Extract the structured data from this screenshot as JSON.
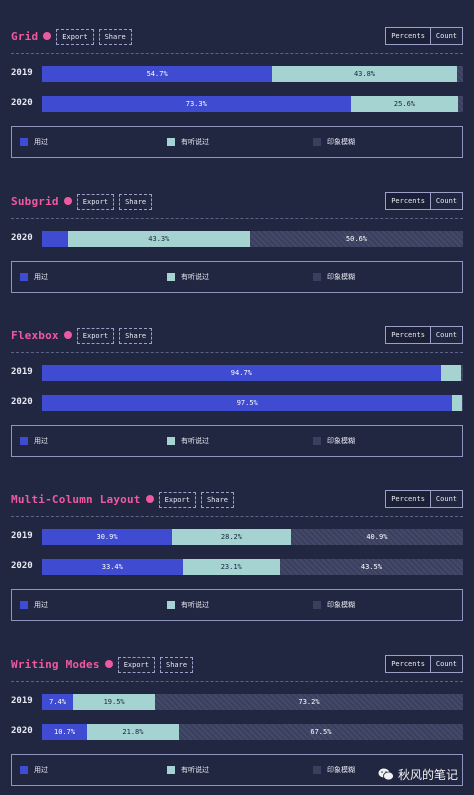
{
  "buttons": {
    "export": "Export",
    "share": "Share"
  },
  "toggle": {
    "percents": "Percents",
    "count": "Count"
  },
  "legend": [
    {
      "label": "用过",
      "color": "#3f4bd1"
    },
    {
      "label": "有听说过",
      "color": "#a5d3d1"
    },
    {
      "label": "印象模糊",
      "color": "#3a3f5f"
    }
  ],
  "watermark": "秋风的笔记",
  "chart_data": [
    {
      "type": "bar",
      "stacked": true,
      "orientation": "horizontal",
      "title": "Grid",
      "categories": [
        "2019",
        "2020"
      ],
      "series": [
        {
          "name": "用过",
          "values": [
            54.7,
            73.3
          ]
        },
        {
          "name": "有听说过",
          "values": [
            43.8,
            25.6
          ]
        },
        {
          "name": "印象模糊",
          "values": [
            1.5,
            1.1
          ]
        }
      ],
      "labels": [
        [
          "54.7%",
          "43.8%",
          ""
        ],
        [
          "73.3%",
          "25.6%",
          ""
        ]
      ]
    },
    {
      "type": "bar",
      "stacked": true,
      "orientation": "horizontal",
      "title": "Subgrid",
      "categories": [
        "2020"
      ],
      "series": [
        {
          "name": "用过",
          "values": [
            6.1
          ]
        },
        {
          "name": "有听说过",
          "values": [
            43.3
          ]
        },
        {
          "name": "印象模糊",
          "values": [
            50.6
          ]
        }
      ],
      "labels": [
        [
          "",
          "43.3%",
          "50.6%"
        ]
      ]
    },
    {
      "type": "bar",
      "stacked": true,
      "orientation": "horizontal",
      "title": "Flexbox",
      "categories": [
        "2019",
        "2020"
      ],
      "series": [
        {
          "name": "用过",
          "values": [
            94.7,
            97.5
          ]
        },
        {
          "name": "有听说过",
          "values": [
            4.8,
            2.2
          ]
        },
        {
          "name": "印象模糊",
          "values": [
            0.5,
            0.3
          ]
        }
      ],
      "labels": [
        [
          "94.7%",
          "",
          ""
        ],
        [
          "97.5%",
          "",
          ""
        ]
      ]
    },
    {
      "type": "bar",
      "stacked": true,
      "orientation": "horizontal",
      "title": "Multi-Column Layout",
      "categories": [
        "2019",
        "2020"
      ],
      "series": [
        {
          "name": "用过",
          "values": [
            30.9,
            33.4
          ]
        },
        {
          "name": "有听说过",
          "values": [
            28.2,
            23.1
          ]
        },
        {
          "name": "印象模糊",
          "values": [
            40.9,
            43.5
          ]
        }
      ],
      "labels": [
        [
          "30.9%",
          "28.2%",
          "40.9%"
        ],
        [
          "33.4%",
          "23.1%",
          "43.5%"
        ]
      ]
    },
    {
      "type": "bar",
      "stacked": true,
      "orientation": "horizontal",
      "title": "Writing Modes",
      "categories": [
        "2019",
        "2020"
      ],
      "series": [
        {
          "name": "用过",
          "values": [
            7.4,
            10.7
          ]
        },
        {
          "name": "有听说过",
          "values": [
            19.5,
            21.8
          ]
        },
        {
          "name": "印象模糊",
          "values": [
            73.2,
            67.5
          ]
        }
      ],
      "labels": [
        [
          "7.4%",
          "19.5%",
          "73.2%"
        ],
        [
          "10.7%",
          "21.8%",
          "67.5%"
        ]
      ]
    }
  ]
}
